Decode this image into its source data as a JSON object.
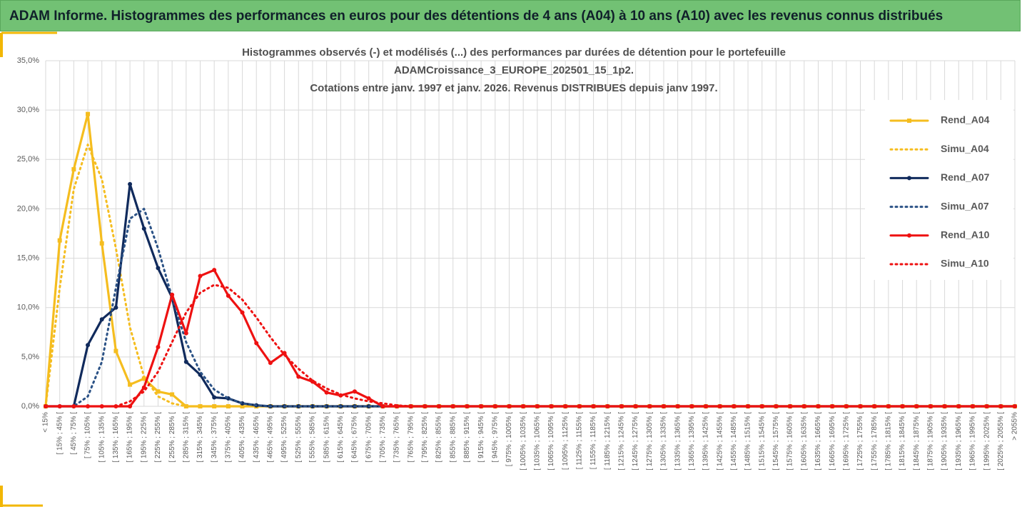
{
  "header": {
    "title": "ADAM Informe. Histogrammes des performances en euros pour des détentions de 4 ans (A04) à 10 ans (A10) avec les revenus connus distribués"
  },
  "chart_data": {
    "type": "line",
    "title": [
      "Histogrammes observés (-) et modélisés (...) des performances par durées de détention pour le portefeuille",
      "ADAMCroissance_3_EUROPE_202501_15_1p2.",
      "Cotations entre janv. 1997 et janv. 2026. Revenus DISTRIBUES depuis janv 1997."
    ],
    "categories": [
      "< 15%",
      "[ 15% ; 45% [",
      "[ 45% ; 75% [",
      "[ 75% ; 105% [",
      "[ 105% ; 135% [",
      "[ 135% ; 165% [",
      "[ 165% ; 195% [",
      "[ 195% ; 225% [",
      "[ 225% ; 255% [",
      "[ 255% ; 285% [",
      "[ 285% ; 315% [",
      "[ 315% ; 345% [",
      "[ 345% ; 375% [",
      "[ 375% ; 405% [",
      "[ 405% ; 435% [",
      "[ 435% ; 465% [",
      "[ 465% ; 495% [",
      "[ 495% ; 525% [",
      "[ 525% ; 555% [",
      "[ 555% ; 585% [",
      "[ 585% ; 615% [",
      "[ 615% ; 645% [",
      "[ 645% ; 675% [",
      "[ 675% ; 705% [",
      "[ 705% ; 735% [",
      "[ 735% ; 765% [",
      "[ 765% ; 795% [",
      "[ 795% ; 825% [",
      "[ 825% ; 855% [",
      "[ 855% ; 885% [",
      "[ 885% ; 915% [",
      "[ 915% ; 945% [",
      "[ 945% ; 975% [",
      "[ 975% ; 1005% [",
      "[ 1005% ; 1035% [",
      "[ 1035% ; 1065% [",
      "[ 1065% ; 1095% [",
      "[ 1095% ; 1125% [",
      "[ 1125% ; 1155% [",
      "[ 1155% ; 1185% [",
      "[ 1185% ; 1215% [",
      "[ 1215% ; 1245% [",
      "[ 1245% ; 1275% [",
      "[ 1275% ; 1305% [",
      "[ 1305% ; 1335% [",
      "[ 1335% ; 1365% [",
      "[ 1365% ; 1395% [",
      "[ 1395% ; 1425% [",
      "[ 1425% ; 1455% [",
      "[ 1455% ; 1485% [",
      "[ 1485% ; 1515% [",
      "[ 1515% ; 1545% [",
      "[ 1545% ; 1575% [",
      "[ 1575% ; 1605% [",
      "[ 1605% ; 1635% [",
      "[ 1635% ; 1665% [",
      "[ 1665% ; 1695% [",
      "[ 1695% ; 1725% [",
      "[ 1725% ; 1755% [",
      "[ 1755% ; 1785% [",
      "[ 1785% ; 1815% [",
      "[ 1815% ; 1845% [",
      "[ 1845% ; 1875% [",
      "[ 1875% ; 1905% [",
      "[ 1905% ; 1935% [",
      "[ 1935% ; 1965% [",
      "[ 1965% ; 1995% [",
      "[ 1995% ; 2025% [",
      "[ 2025% ; 2055% [",
      "> 2055%"
    ],
    "series": [
      {
        "name": "Rend_A04",
        "color": "#f5bd1f",
        "style": "solid",
        "marker": "square",
        "values": [
          0,
          16.8,
          24,
          29.6,
          16.5,
          5.6,
          2.2,
          2.8,
          1.5,
          1.2,
          0,
          0,
          0,
          0,
          0,
          0,
          0,
          0,
          0,
          0,
          0,
          0,
          0,
          0,
          0,
          0,
          0,
          0,
          0,
          0,
          0,
          0,
          0,
          0,
          0,
          0,
          0,
          0,
          0,
          0,
          0,
          0,
          0,
          0,
          0,
          0,
          0,
          0,
          0,
          0,
          0,
          0,
          0,
          0,
          0,
          0,
          0,
          0,
          0,
          0,
          0,
          0,
          0,
          0,
          0,
          0,
          0,
          0,
          0,
          0
        ]
      },
      {
        "name": "Simu_A04",
        "color": "#f5bd1f",
        "style": "dotted",
        "marker": "none",
        "values": [
          0,
          12,
          22,
          26.5,
          23,
          16,
          8,
          3,
          1,
          0.3,
          0,
          0,
          0,
          0,
          0,
          0,
          0,
          0,
          0,
          0,
          0,
          0,
          0,
          0,
          0,
          0,
          0,
          0,
          0,
          0,
          0,
          0,
          0,
          0,
          0,
          0,
          0,
          0,
          0,
          0,
          0,
          0,
          0,
          0,
          0,
          0,
          0,
          0,
          0,
          0,
          0,
          0,
          0,
          0,
          0,
          0,
          0,
          0,
          0,
          0,
          0,
          0,
          0,
          0,
          0,
          0,
          0,
          0,
          0,
          0
        ]
      },
      {
        "name": "Rend_A07",
        "color": "#102a5c",
        "style": "solid",
        "marker": "circle",
        "values": [
          0,
          0,
          0,
          6.2,
          8.8,
          10,
          22.5,
          18,
          14,
          11,
          4.5,
          3.2,
          0.9,
          0.8,
          0.3,
          0.1,
          0,
          0,
          0,
          0,
          0,
          0,
          0,
          0,
          0,
          0,
          0,
          0,
          0,
          0,
          0,
          0,
          0,
          0,
          0,
          0,
          0,
          0,
          0,
          0,
          0,
          0,
          0,
          0,
          0,
          0,
          0,
          0,
          0,
          0,
          0,
          0,
          0,
          0,
          0,
          0,
          0,
          0,
          0,
          0,
          0,
          0,
          0,
          0,
          0,
          0,
          0,
          0,
          0,
          0
        ]
      },
      {
        "name": "Simu_A07",
        "color": "#2b5286",
        "style": "dotted",
        "marker": "none",
        "values": [
          0,
          0,
          0,
          1,
          4.5,
          12,
          19,
          20,
          16,
          11,
          6.5,
          3.5,
          1.7,
          0.8,
          0.3,
          0.1,
          0,
          0,
          0,
          0,
          0,
          0,
          0,
          0,
          0,
          0,
          0,
          0,
          0,
          0,
          0,
          0,
          0,
          0,
          0,
          0,
          0,
          0,
          0,
          0,
          0,
          0,
          0,
          0,
          0,
          0,
          0,
          0,
          0,
          0,
          0,
          0,
          0,
          0,
          0,
          0,
          0,
          0,
          0,
          0,
          0,
          0,
          0,
          0,
          0,
          0,
          0,
          0,
          0,
          0
        ]
      },
      {
        "name": "Rend_A10",
        "color": "#ee1111",
        "style": "solid",
        "marker": "circle",
        "values": [
          0,
          0,
          0,
          0,
          0,
          0,
          0,
          1.9,
          6,
          11.3,
          7.4,
          13.2,
          13.8,
          11.2,
          9.5,
          6.4,
          4.4,
          5.4,
          3,
          2.5,
          1.4,
          1.1,
          1.5,
          0.8,
          0,
          0,
          0,
          0,
          0,
          0,
          0,
          0,
          0,
          0,
          0,
          0,
          0,
          0,
          0,
          0,
          0,
          0,
          0,
          0,
          0,
          0,
          0,
          0,
          0,
          0,
          0,
          0,
          0,
          0,
          0,
          0,
          0,
          0,
          0,
          0,
          0,
          0,
          0,
          0,
          0,
          0,
          0,
          0,
          0,
          0
        ]
      },
      {
        "name": "Simu_A10",
        "color": "#ee1111",
        "style": "dotted",
        "marker": "none",
        "values": [
          0,
          0,
          0,
          0,
          0,
          0,
          0.5,
          1.5,
          3.5,
          6.5,
          9.5,
          11.5,
          12.3,
          12,
          10.8,
          9,
          7,
          5.2,
          3.8,
          2.6,
          1.8,
          1.2,
          0.8,
          0.5,
          0.3,
          0.1,
          0,
          0,
          0,
          0,
          0,
          0,
          0,
          0,
          0,
          0,
          0,
          0,
          0,
          0,
          0,
          0,
          0,
          0,
          0,
          0,
          0,
          0,
          0,
          0,
          0,
          0,
          0,
          0,
          0,
          0,
          0,
          0,
          0,
          0,
          0,
          0,
          0,
          0,
          0,
          0,
          0,
          0,
          0,
          0
        ]
      }
    ],
    "ylim": [
      0,
      35
    ],
    "yticks": [
      {
        "value": 0,
        "label": "0,0%"
      },
      {
        "value": 5,
        "label": "5,0%"
      },
      {
        "value": 10,
        "label": "10,0%"
      },
      {
        "value": 15,
        "label": "15,0%"
      },
      {
        "value": 20,
        "label": "20,0%"
      },
      {
        "value": 25,
        "label": "25,0%"
      },
      {
        "value": 30,
        "label": "30,0%"
      },
      {
        "value": 35,
        "label": "35,0%"
      }
    ],
    "grid": true,
    "legend": "right"
  }
}
